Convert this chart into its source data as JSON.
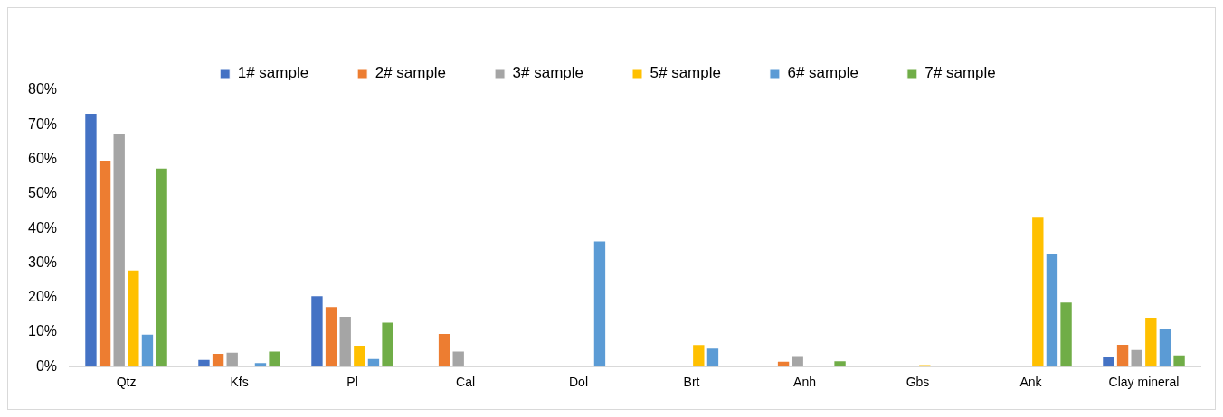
{
  "chart_data": {
    "type": "bar",
    "categories": [
      "Qtz",
      "Kfs",
      "Pl",
      "Cal",
      "Dol",
      "Brt",
      "Anh",
      "Gbs",
      "Ank",
      "Clay mineral"
    ],
    "series": [
      {
        "name": "1# sample",
        "color": "#4472c4",
        "values": [
          73.5,
          2.2,
          20.6,
          0,
          0,
          0,
          0,
          0,
          0,
          3.2
        ]
      },
      {
        "name": "2# sample",
        "color": "#ed7d31",
        "values": [
          59.9,
          4.0,
          17.5,
          9.7,
          0,
          0,
          1.7,
          0,
          0,
          6.6
        ]
      },
      {
        "name": "3# sample",
        "color": "#a5a5a5",
        "values": [
          67.5,
          4.3,
          14.7,
          4.6,
          0,
          0,
          3.3,
          0,
          0,
          5.1
        ]
      },
      {
        "name": "5# sample",
        "color": "#ffc000",
        "values": [
          28.1,
          0,
          6.3,
          0,
          0,
          6.5,
          0,
          0.7,
          43.6,
          14.4
        ]
      },
      {
        "name": "6# sample",
        "color": "#5b9bd5",
        "values": [
          9.5,
          1.3,
          2.5,
          0,
          36.5,
          5.5,
          0,
          0,
          33.0,
          11.0
        ]
      },
      {
        "name": "7# sample",
        "color": "#70ad47",
        "values": [
          57.6,
          4.6,
          13.0,
          0,
          0,
          0,
          1.8,
          0,
          18.8,
          3.5
        ]
      }
    ],
    "ylim": [
      0,
      80
    ],
    "yticks": [
      {
        "value": 0,
        "label": "0%"
      },
      {
        "value": 10,
        "label": "10%"
      },
      {
        "value": 20,
        "label": "20%"
      },
      {
        "value": 30,
        "label": "30%"
      },
      {
        "value": 40,
        "label": "40%"
      },
      {
        "value": 50,
        "label": "50%"
      },
      {
        "value": 60,
        "label": "60%"
      },
      {
        "value": 70,
        "label": "70%"
      },
      {
        "value": 80,
        "label": "80%"
      }
    ],
    "grid": false,
    "legend": "top"
  }
}
